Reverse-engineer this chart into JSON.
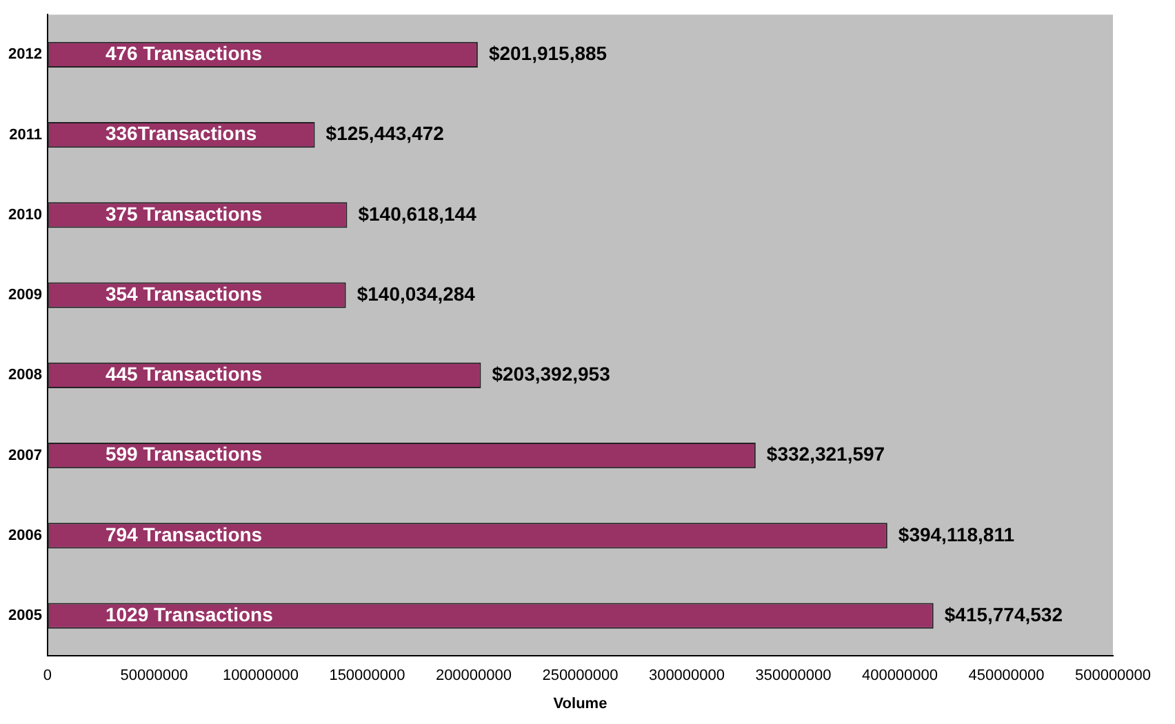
{
  "chart_data": {
    "type": "bar",
    "orientation": "horizontal",
    "xlabel": "Volume",
    "categories": [
      "2012",
      "2011",
      "2010",
      "2009",
      "2008",
      "2007",
      "2006",
      "2005"
    ],
    "values": [
      201915885,
      125443472,
      140618144,
      140034284,
      203392953,
      332321597,
      394118811,
      415774532
    ],
    "value_labels": [
      "$201,915,885",
      "$125,443,472",
      "$140,618,144",
      "$140,034,284",
      "$203,392,953",
      "$332,321,597",
      "$394,118,811",
      "$415,774,532"
    ],
    "color": "#993366",
    "xlim": [
      0,
      500000000
    ],
    "xticks": [
      0,
      50000000,
      100000000,
      150000000,
      200000000,
      250000000,
      300000000,
      350000000,
      400000000,
      450000000,
      500000000
    ],
    "annotations": [
      "476 Transactions",
      "336Transactions",
      "375 Transactions",
      "354 Transactions",
      "445 Transactions",
      "599 Transactions",
      "794 Transactions",
      "1029 Transactions"
    ],
    "grid": false,
    "legend": false
  }
}
